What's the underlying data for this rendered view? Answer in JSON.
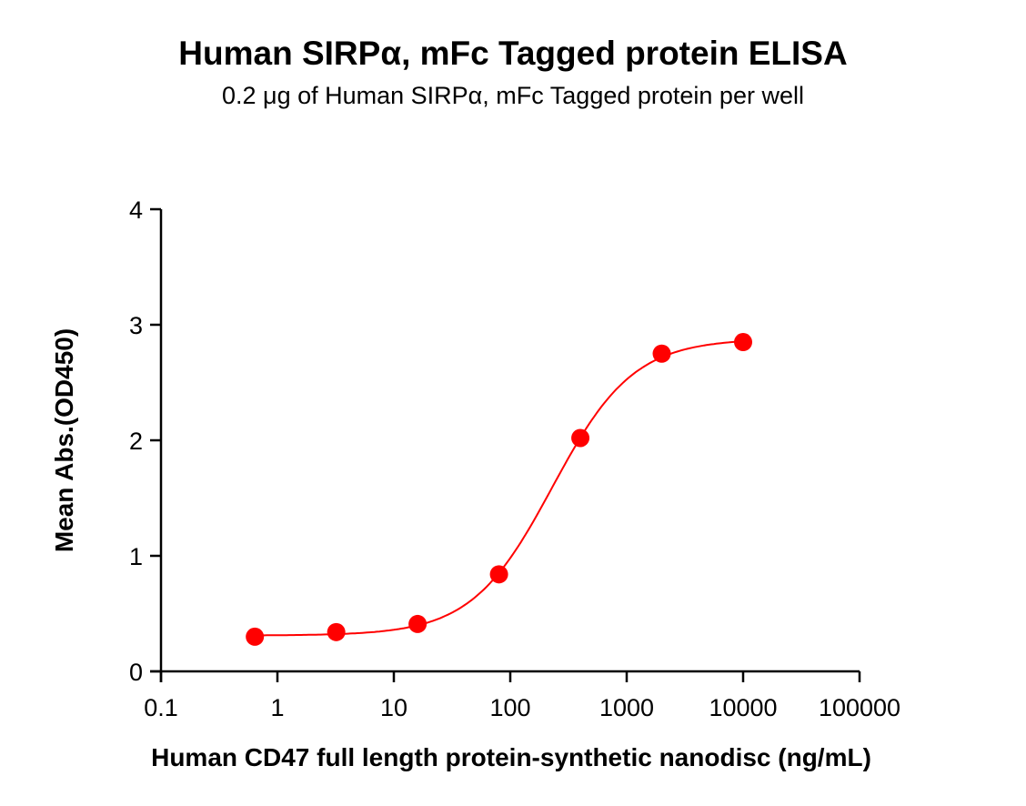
{
  "chart_data": {
    "type": "scatter",
    "title": "Human SIRPα, mFc Tagged protein ELISA",
    "subtitle": "0.2 μg of Human SIRPα, mFc Tagged protein per well",
    "xlabel": "Human CD47 full length protein-synthetic nanodisc (ng/mL)",
    "ylabel": "Mean Abs.(OD450)",
    "xscale": "log",
    "xlim": [
      0.1,
      100000
    ],
    "ylim": [
      0,
      4
    ],
    "xticks": [
      "0.1",
      "1",
      "10",
      "100",
      "1000",
      "10000",
      "100000"
    ],
    "yticks": [
      "0",
      "1",
      "2",
      "3",
      "4"
    ],
    "grid": false,
    "legend": null,
    "series": [
      {
        "name": "Human SIRPα, mFc Tagged protein",
        "color": "#ff0000",
        "marker": "circle",
        "fit": "4PL sigmoidal curve",
        "x": [
          0.64,
          3.2,
          16,
          80,
          400,
          2000,
          10000
        ],
        "y": [
          0.3,
          0.34,
          0.41,
          0.84,
          2.02,
          2.75,
          2.85
        ]
      }
    ]
  }
}
